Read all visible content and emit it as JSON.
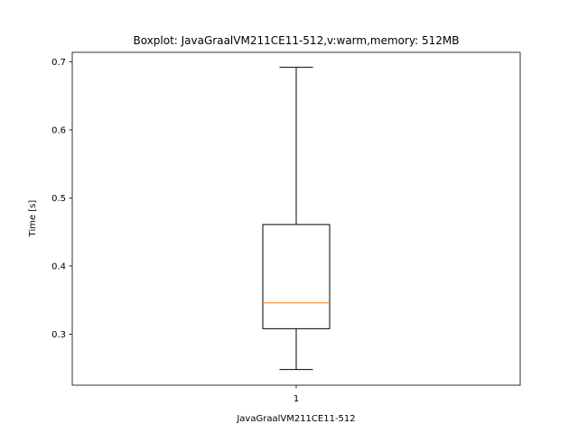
{
  "chart_data": {
    "type": "box",
    "title": "Boxplot: JavaGraalVM211CE11-512,v:warm,memory: 512MB",
    "xlabel": "JavaGraalVM211CE11-512",
    "ylabel": "Time [s]",
    "categories": [
      "1"
    ],
    "boxes": [
      {
        "category": "1",
        "whisker_low": 0.248,
        "q1": 0.308,
        "median": 0.346,
        "q3": 0.461,
        "whisker_high": 0.692
      }
    ],
    "ylim": [
      0.225,
      0.714
    ],
    "yticks": [
      0.3,
      0.4,
      0.5,
      0.6,
      0.7
    ],
    "ytick_labels": [
      "0.3",
      "0.4",
      "0.5",
      "0.6",
      "0.7"
    ],
    "grid": false,
    "colors": {
      "box": "#000000",
      "median": "#ff7f0e",
      "axes": "#000000"
    }
  }
}
